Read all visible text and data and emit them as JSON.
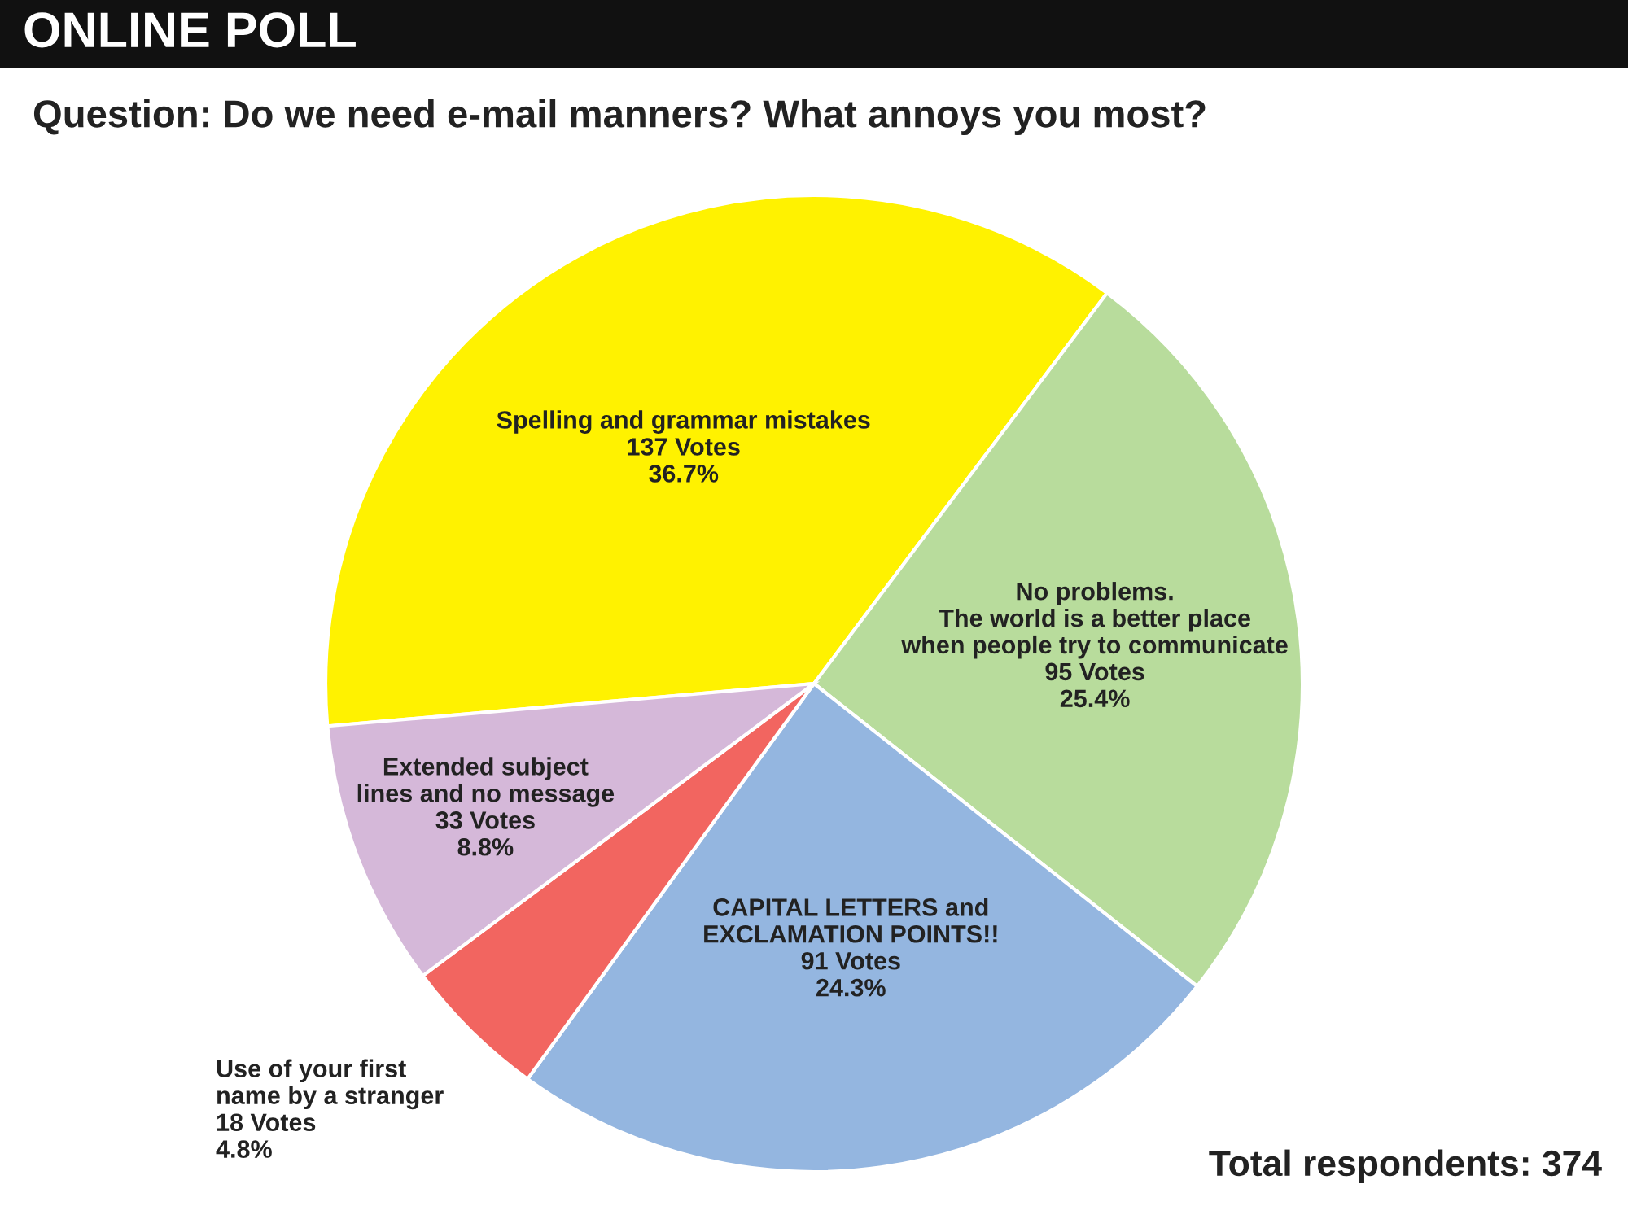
{
  "chart_data": {
    "type": "pie",
    "title": "ONLINE POLL",
    "subtitle": "Question: Do we need e-mail manners? What annoys you most?",
    "categories": [
      "Spelling and grammar mistakes",
      "No problems.\nThe world is a better place\nwhen people try to communicate",
      "CAPITAL LETTERS and\nEXCLAMATION POINTS!!",
      "Use of your first\nname by a stranger",
      "Extended subject\nlines and no message"
    ],
    "values": [
      137,
      95,
      91,
      18,
      33
    ],
    "value_labels": [
      "137 Votes\n36.7%",
      "95 Votes\n25.4%",
      "91 Votes\n24.3%",
      "18 Votes\n4.8%",
      "33 Votes\n8.8%"
    ],
    "colors": [
      "#fff200",
      "#b8dc9c",
      "#94b6e0",
      "#f26560",
      "#d5b8d9"
    ],
    "annotations": [
      "Total respondents: 374"
    ]
  }
}
